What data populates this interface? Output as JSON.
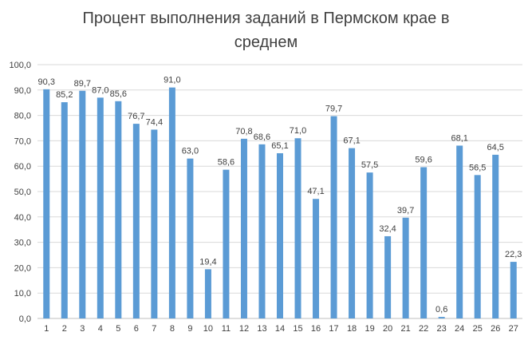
{
  "chart_data": {
    "type": "bar",
    "title_lines": [
      "Процент выполнения заданий в Пермском крае в",
      "среднем"
    ],
    "categories": [
      "1",
      "2",
      "3",
      "4",
      "5",
      "6",
      "7",
      "8",
      "9",
      "10",
      "11",
      "12",
      "13",
      "14",
      "15",
      "16",
      "17",
      "18",
      "19",
      "20",
      "21",
      "22",
      "23",
      "24",
      "25",
      "26",
      "27"
    ],
    "values": [
      90.3,
      85.2,
      89.7,
      87.0,
      85.6,
      76.7,
      74.4,
      91.0,
      63.0,
      19.4,
      58.6,
      70.8,
      68.6,
      65.1,
      71.0,
      47.1,
      79.7,
      67.1,
      57.5,
      32.4,
      39.7,
      59.6,
      0.6,
      68.1,
      56.5,
      64.5,
      22.3
    ],
    "value_labels": [
      "90,3",
      "85,2",
      "89,7",
      "87,0",
      "85,6",
      "76,7",
      "74,4",
      "91,0",
      "63,0",
      "19,4",
      "58,6",
      "70,8",
      "68,6",
      "65,1",
      "71,0",
      "47,1",
      "79,7",
      "67,1",
      "57,5",
      "32,4",
      "39,7",
      "59,6",
      "0,6",
      "68,1",
      "56,5",
      "64,5",
      "22,3"
    ],
    "y_ticks": [
      "0,0",
      "10,0",
      "20,0",
      "30,0",
      "40,0",
      "50,0",
      "60,0",
      "70,0",
      "80,0",
      "90,0",
      "100,0"
    ],
    "ylim": [
      0,
      100
    ],
    "grid": true,
    "legend": "none",
    "bar_color": "#5B9BD5",
    "grid_color": "#D9D9D9",
    "axis_color": "#BFBFBF"
  }
}
